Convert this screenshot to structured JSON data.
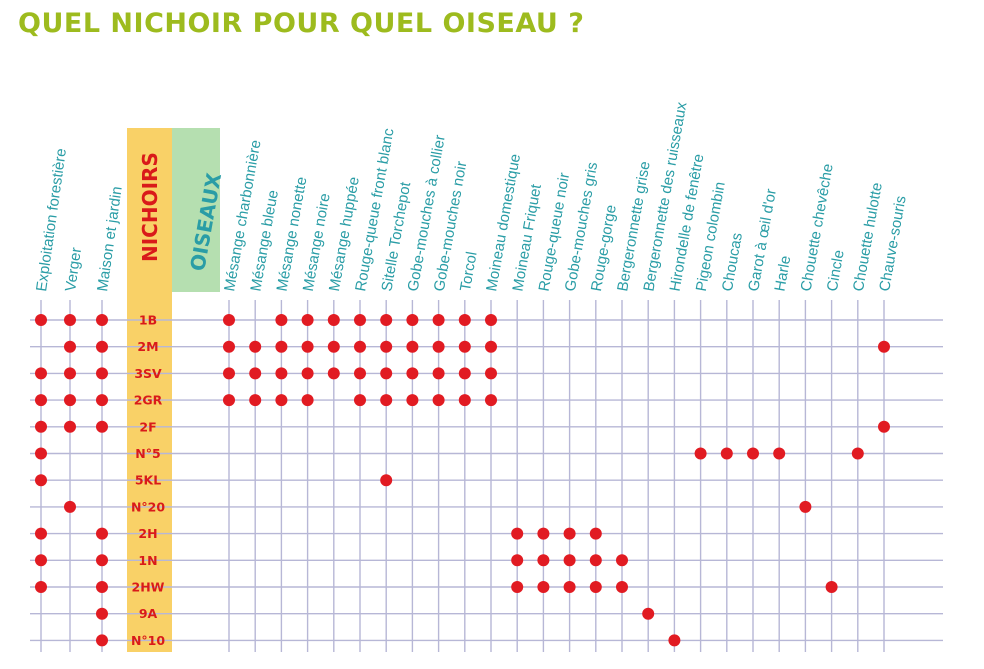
{
  "title": "QUEL NICHOIR POUR QUEL OISEAU ?",
  "header_nichoirs": "NICHOIRS",
  "header_oiseaux": "OISEAUX",
  "colors": {
    "title": "#9dbb1e",
    "column_label": "#2a9da6",
    "row_label": "#d91a1a",
    "nichoirs_band": "#f9d167",
    "oiseaux_band": "#b5dfb0",
    "dot": "#e11b22",
    "grid": "#b7b7d6"
  },
  "habitats": [
    "Exploitation forestière",
    "Verger",
    "Maison et jardin"
  ],
  "nichoirs": [
    "1B",
    "2M",
    "3SV",
    "2GR",
    "2F",
    "N°5",
    "5KL",
    "N°20",
    "2H",
    "1N",
    "2HW",
    "9A",
    "N°10"
  ],
  "oiseaux": [
    "Mésange charbonnière",
    "Mésange bleue",
    "Mésange nonette",
    "Mésange noire",
    "Mésange huppée",
    "Rouge-queue front blanc",
    "Sitelle Torchepot",
    "Gobe-mouches à collier",
    "Gobe-mouches noir",
    "Torcol",
    "Moineau domestique",
    "Moineau Friquet",
    "Rouge-queue noir",
    "Gobe-mouches gris",
    "Rouge-gorge",
    "Bergeronnette grise",
    "Bergeronnette des ruisseaux",
    "Hirondelle de fenêtre",
    "Pigeon colombin",
    "Choucas",
    "Garot à œil d'or",
    "Harle",
    "Chouette chevêche",
    "Cincle",
    "Chouette hulotte",
    "Chauve-souris"
  ],
  "habitat_matrix": [
    [
      1,
      1,
      1
    ],
    [
      0,
      1,
      1
    ],
    [
      1,
      1,
      1
    ],
    [
      1,
      1,
      1
    ],
    [
      1,
      1,
      1
    ],
    [
      1,
      0,
      0
    ],
    [
      1,
      0,
      0
    ],
    [
      0,
      1,
      0
    ],
    [
      1,
      0,
      1
    ],
    [
      1,
      0,
      1
    ],
    [
      1,
      0,
      1
    ],
    [
      0,
      0,
      1
    ],
    [
      0,
      0,
      1
    ]
  ],
  "bird_matrix": [
    [
      1,
      0,
      1,
      1,
      1,
      1,
      1,
      1,
      1,
      1,
      1,
      0,
      0,
      0,
      0,
      0,
      0,
      0,
      0,
      0,
      0,
      0,
      0,
      0,
      0,
      0
    ],
    [
      1,
      1,
      1,
      1,
      1,
      1,
      1,
      1,
      1,
      1,
      1,
      0,
      0,
      0,
      0,
      0,
      0,
      0,
      0,
      0,
      0,
      0,
      0,
      0,
      0,
      1
    ],
    [
      1,
      1,
      1,
      1,
      1,
      1,
      1,
      1,
      1,
      1,
      1,
      0,
      0,
      0,
      0,
      0,
      0,
      0,
      0,
      0,
      0,
      0,
      0,
      0,
      0,
      0
    ],
    [
      1,
      1,
      1,
      1,
      0,
      1,
      1,
      1,
      1,
      1,
      1,
      0,
      0,
      0,
      0,
      0,
      0,
      0,
      0,
      0,
      0,
      0,
      0,
      0,
      0,
      0
    ],
    [
      0,
      0,
      0,
      0,
      0,
      0,
      0,
      0,
      0,
      0,
      0,
      0,
      0,
      0,
      0,
      0,
      0,
      0,
      0,
      0,
      0,
      0,
      0,
      0,
      0,
      1
    ],
    [
      0,
      0,
      0,
      0,
      0,
      0,
      0,
      0,
      0,
      0,
      0,
      0,
      0,
      0,
      0,
      0,
      0,
      0,
      1,
      1,
      1,
      1,
      0,
      0,
      1,
      0
    ],
    [
      0,
      0,
      0,
      0,
      0,
      0,
      1,
      0,
      0,
      0,
      0,
      0,
      0,
      0,
      0,
      0,
      0,
      0,
      0,
      0,
      0,
      0,
      0,
      0,
      0,
      0
    ],
    [
      0,
      0,
      0,
      0,
      0,
      0,
      0,
      0,
      0,
      0,
      0,
      0,
      0,
      0,
      0,
      0,
      0,
      0,
      0,
      0,
      0,
      0,
      1,
      0,
      0,
      0
    ],
    [
      0,
      0,
      0,
      0,
      0,
      0,
      0,
      0,
      0,
      0,
      0,
      1,
      1,
      1,
      1,
      0,
      0,
      0,
      0,
      0,
      0,
      0,
      0,
      0,
      0,
      0
    ],
    [
      0,
      0,
      0,
      0,
      0,
      0,
      0,
      0,
      0,
      0,
      0,
      1,
      1,
      1,
      1,
      1,
      0,
      0,
      0,
      0,
      0,
      0,
      0,
      0,
      0,
      0
    ],
    [
      0,
      0,
      0,
      0,
      0,
      0,
      0,
      0,
      0,
      0,
      0,
      1,
      1,
      1,
      1,
      1,
      0,
      0,
      0,
      0,
      0,
      0,
      0,
      1,
      0,
      0
    ],
    [
      0,
      0,
      0,
      0,
      0,
      0,
      0,
      0,
      0,
      0,
      0,
      0,
      0,
      0,
      0,
      0,
      1,
      0,
      0,
      0,
      0,
      0,
      0,
      0,
      0,
      0
    ],
    [
      0,
      0,
      0,
      0,
      0,
      0,
      0,
      0,
      0,
      0,
      0,
      0,
      0,
      0,
      0,
      0,
      0,
      1,
      0,
      0,
      0,
      0,
      0,
      0,
      0,
      0
    ]
  ]
}
